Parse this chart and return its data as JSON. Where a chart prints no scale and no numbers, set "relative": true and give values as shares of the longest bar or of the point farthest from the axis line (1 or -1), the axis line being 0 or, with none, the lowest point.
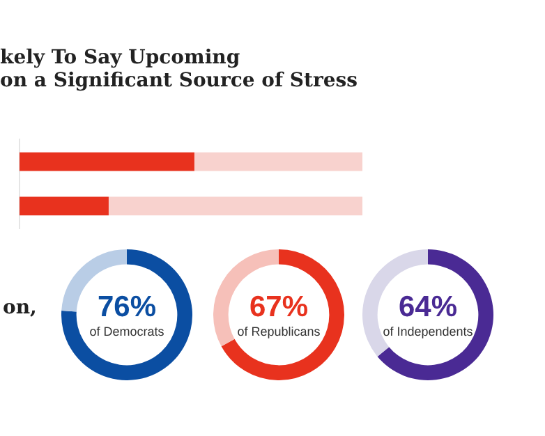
{
  "chart_data": [
    {
      "type": "bar",
      "orientation": "horizontal",
      "stacked": true,
      "relative": true,
      "title": "kely To Say Upcoming\non a Significant Source of Stress",
      "categories": [
        null,
        null
      ],
      "series": [
        {
          "color": "#e8321e",
          "values": [
            0.51,
            0.26
          ]
        },
        {
          "color": "#f8d2ce",
          "values": [
            0.49,
            0.74
          ]
        }
      ]
    },
    {
      "type": "donut",
      "categories": [
        null,
        null
      ],
      "values": [
        76,
        24
      ],
      "colors": [
        "#0b4ea2",
        "#b9cde6"
      ],
      "value_labels": [
        "76%",
        null
      ],
      "annotations": [
        "on,",
        "of Democrats"
      ]
    },
    {
      "type": "donut",
      "categories": [
        null,
        null
      ],
      "values": [
        67,
        33
      ],
      "colors": [
        "#e8321e",
        "#f6c0b9"
      ],
      "value_labels": [
        "67%",
        null
      ],
      "annotations": [
        "of Republicans"
      ]
    },
    {
      "type": "donut",
      "categories": [
        null,
        null
      ],
      "values": [
        64,
        36
      ],
      "colors": [
        "#4a2a94",
        "#d9d7e9"
      ],
      "value_labels": [
        "64%",
        null
      ],
      "annotations": [
        "of Independents"
      ]
    }
  ]
}
